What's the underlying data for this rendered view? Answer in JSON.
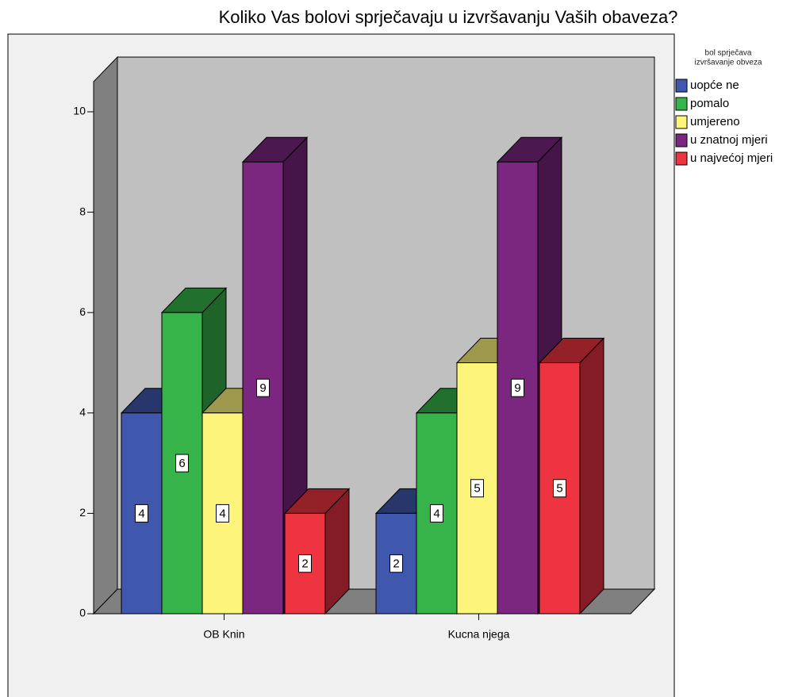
{
  "chart_data": {
    "type": "bar3d",
    "title": "Koliko Vas bolovi sprječavaju u izvršavanju Vaših obaveza?",
    "legend_title": [
      "bol sprječava",
      "izvršavanje obveza"
    ],
    "categories": [
      "OB Knin",
      "Kucna njega"
    ],
    "series": [
      {
        "name": "uopće ne",
        "color": "#3f58ad",
        "values": [
          4,
          2
        ]
      },
      {
        "name": "pomalo",
        "color": "#37b449",
        "values": [
          6,
          4
        ]
      },
      {
        "name": "umjereno",
        "color": "#fdf57b",
        "values": [
          4,
          5
        ]
      },
      {
        "name": "u znatnoj mjeri",
        "color": "#7b267f",
        "values": [
          9,
          9
        ]
      },
      {
        "name": "u najvećoj mjeri",
        "color": "#ee3341",
        "values": [
          2,
          5
        ]
      }
    ],
    "ylim": [
      0,
      10.6
    ],
    "yticks": [
      0,
      2,
      4,
      6,
      8,
      10
    ],
    "legend": "right"
  }
}
